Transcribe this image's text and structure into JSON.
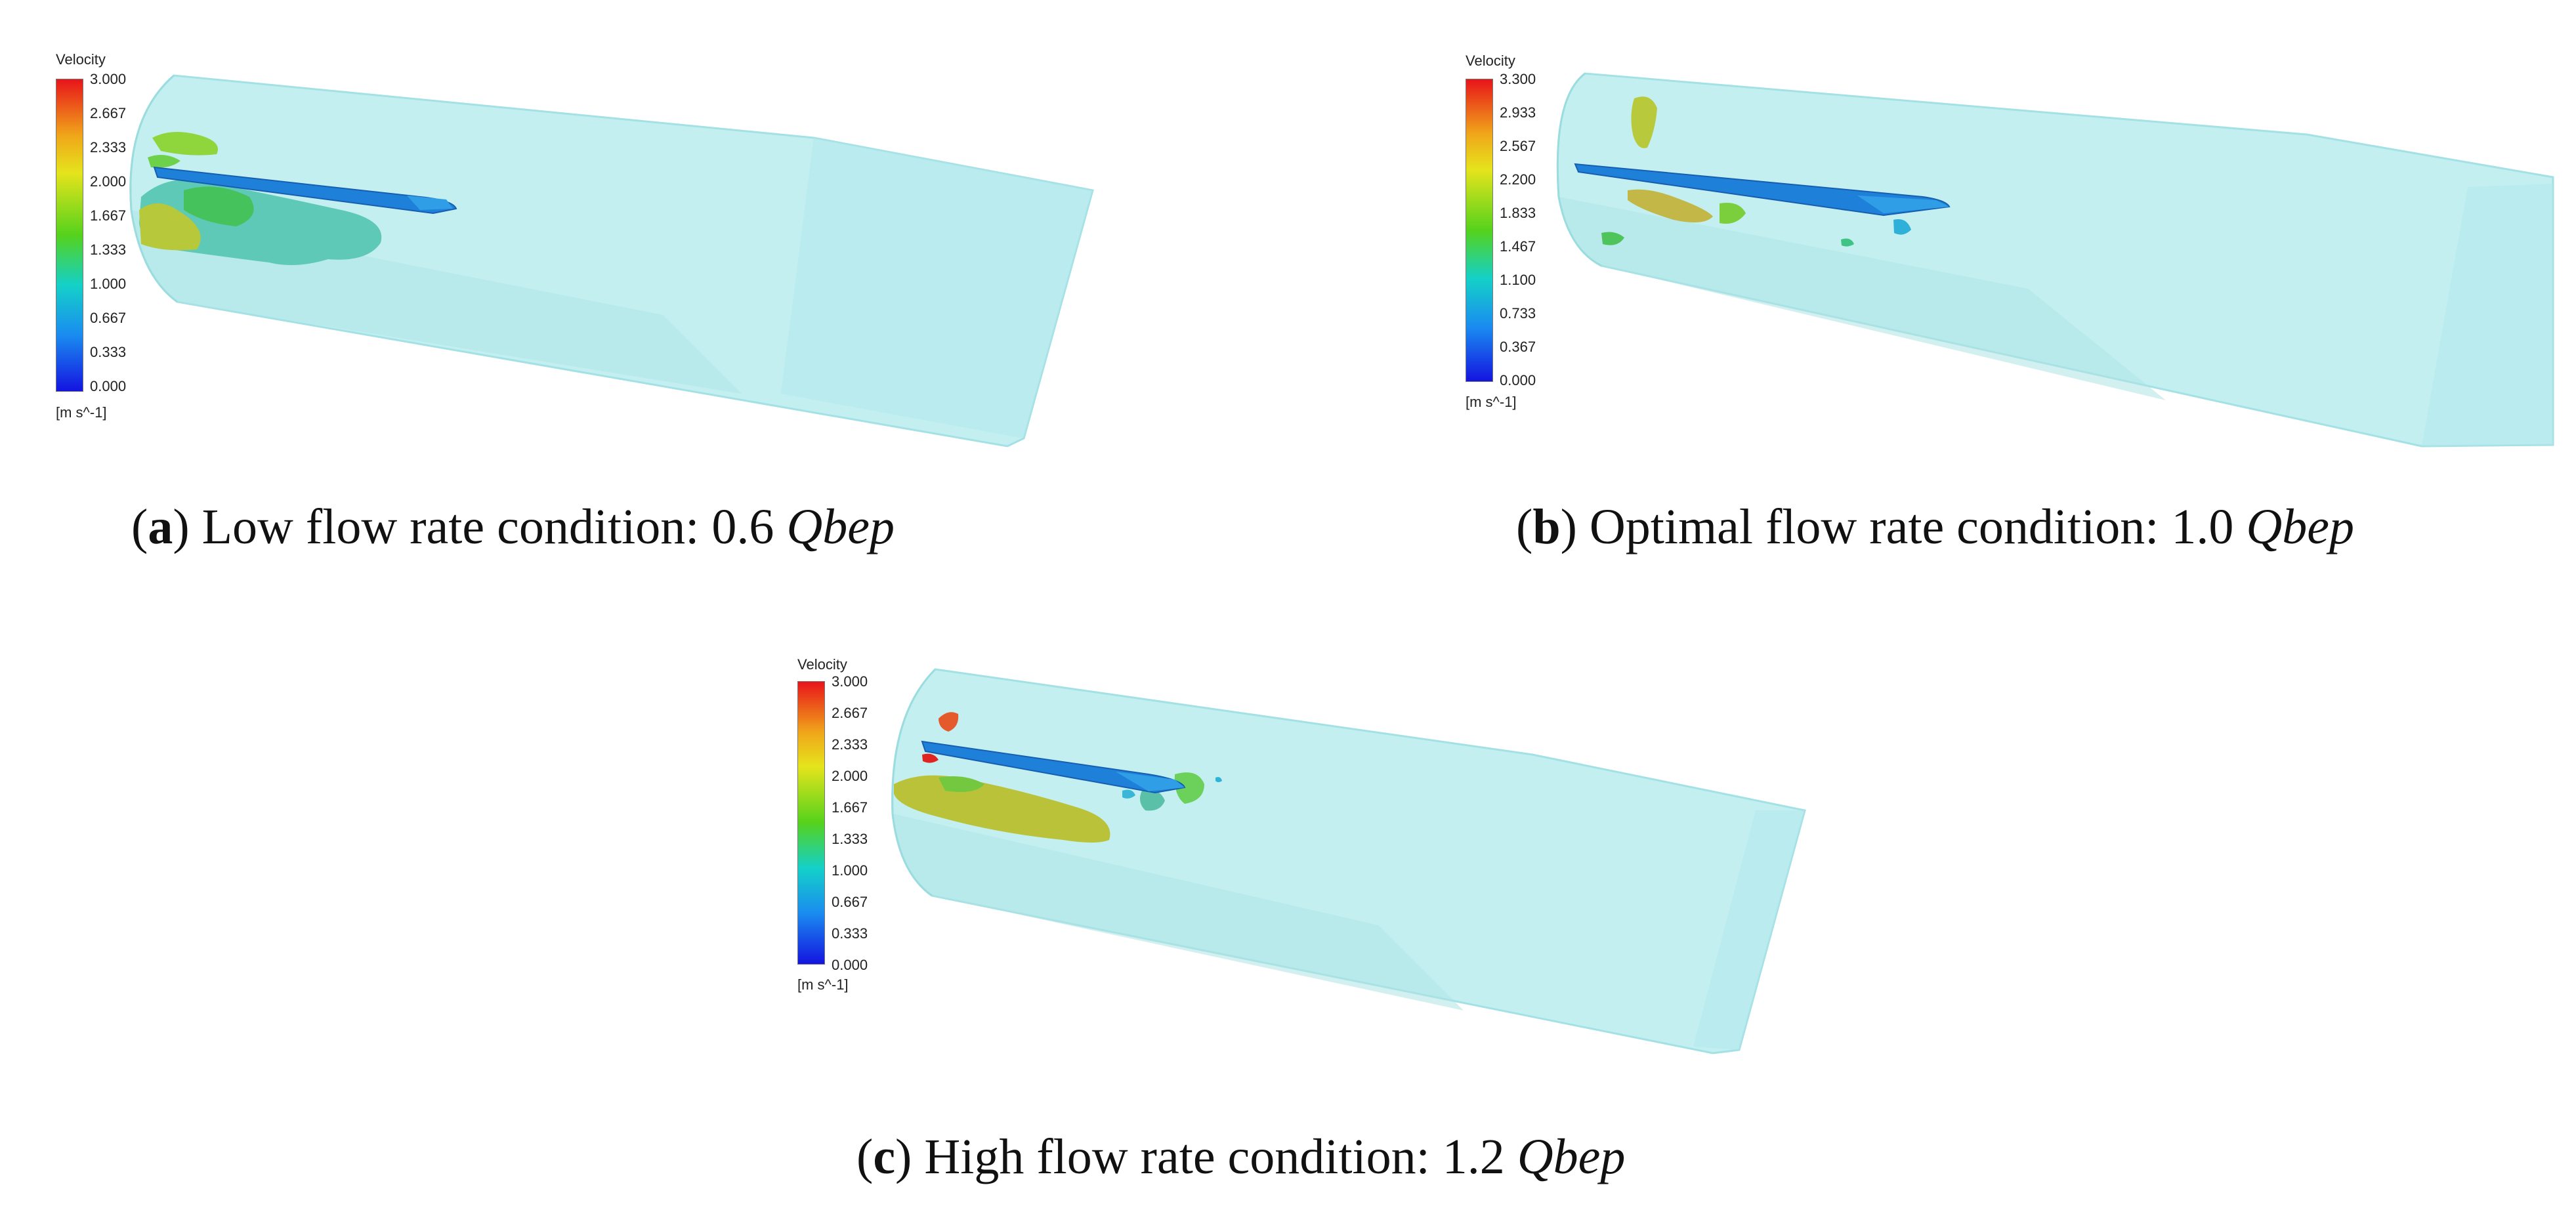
{
  "panels": [
    {
      "id": "a",
      "legend": {
        "title": "Velocity",
        "ticks": [
          "3.000",
          "2.667",
          "2.333",
          "2.000",
          "1.667",
          "1.333",
          "1.000",
          "0.667",
          "0.333",
          "0.000"
        ],
        "unit": "[m s^-1]"
      },
      "caption": {
        "letter": "a",
        "text": "Low flow rate condition: 0.6",
        "var": "Qbep"
      }
    },
    {
      "id": "b",
      "legend": {
        "title": "Velocity",
        "ticks": [
          "3.300",
          "2.933",
          "2.567",
          "2.200",
          "1.833",
          "1.467",
          "1.100",
          "0.733",
          "0.367",
          "0.000"
        ],
        "unit": "[m s^-1]"
      },
      "caption": {
        "letter": "b",
        "text": "Optimal flow rate condition: 1.0",
        "var": "Qbep"
      }
    },
    {
      "id": "c",
      "legend": {
        "title": "Velocity",
        "ticks": [
          "3.000",
          "2.667",
          "2.333",
          "2.000",
          "1.667",
          "1.333",
          "1.000",
          "0.667",
          "0.333",
          "0.000"
        ],
        "unit": "[m s^-1]"
      },
      "caption": {
        "letter": "c",
        "text": "High flow rate condition: 1.2",
        "var": "Qbep"
      }
    }
  ],
  "colors": {
    "tube_fill": "#bfeef0",
    "tube_edge": "#9ddfe3",
    "blade": "#1e7fd8"
  }
}
